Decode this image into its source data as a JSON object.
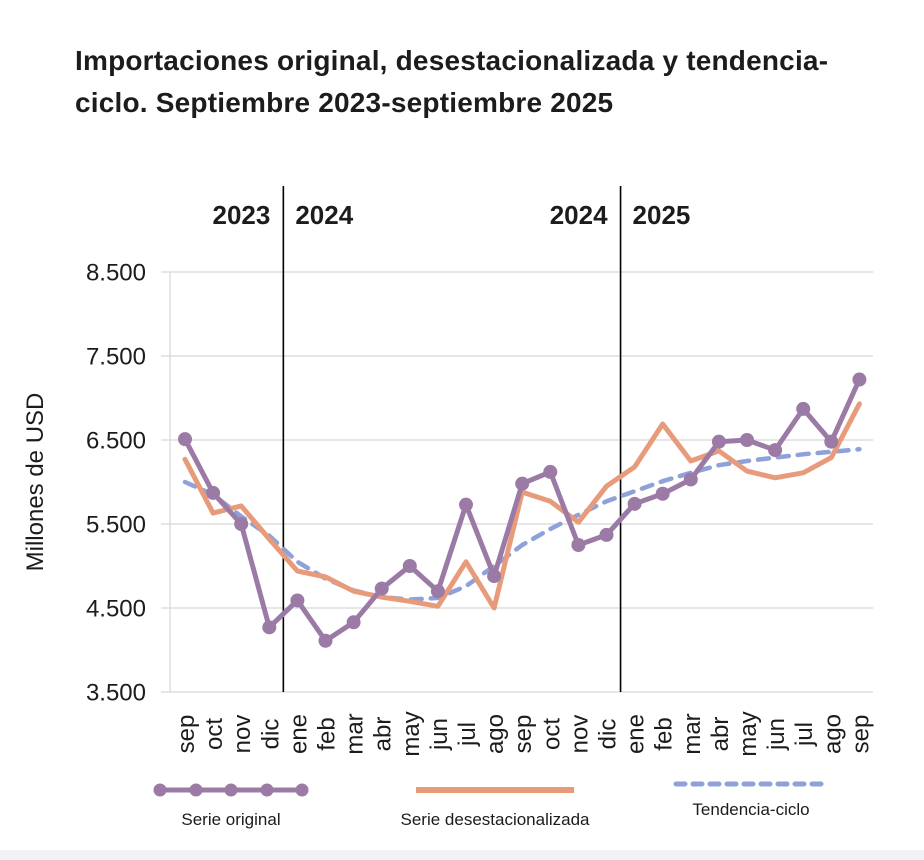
{
  "page": {
    "title_lines": [
      "Importaciones original, desestacionalizada y tendencia-",
      "ciclo. Septiembre 2023-septiembre 2025"
    ],
    "footer_bar_color": "#f2f2f6"
  },
  "chart_data": {
    "type": "line",
    "title": "Importaciones original, desestacionalizada y tendencia-ciclo. Septiembre 2023-septiembre 2025",
    "xlabel": "",
    "ylabel": "Millones de USD",
    "ylim": [
      3500,
      8500
    ],
    "grid": "horizontal",
    "legend_position": "bottom",
    "yticks": {
      "values": [
        3500,
        4500,
        5500,
        6500,
        7500,
        8500
      ],
      "labels": [
        "3.500",
        "4.500",
        "5.500",
        "6.500",
        "7.500",
        "8.500"
      ]
    },
    "x_labels": [
      "sep",
      "oct",
      "nov",
      "dic",
      "ene",
      "feb",
      "mar",
      "abr",
      "may",
      "jun",
      "jul",
      "ago",
      "sep",
      "oct",
      "nov",
      "dic",
      "ene",
      "feb",
      "mar",
      "abr",
      "may",
      "jun",
      "jul",
      "ago",
      "sep"
    ],
    "year_dividers": [
      {
        "between_indices": [
          3,
          4
        ],
        "left_label": "2023",
        "right_label": "2024"
      },
      {
        "between_indices": [
          15,
          16
        ],
        "left_label": "2024",
        "right_label": "2025"
      }
    ],
    "series": [
      {
        "name": "Serie original",
        "color": "#9b7aa6",
        "line_style": "solid",
        "markers": true,
        "values": [
          6510,
          5870,
          5500,
          4270,
          4590,
          4110,
          4330,
          4730,
          5000,
          4700,
          5730,
          4880,
          5980,
          6120,
          5250,
          5370,
          5740,
          5860,
          6030,
          6480,
          6500,
          6380,
          6870,
          6480,
          7220
        ]
      },
      {
        "name": "Serie desestacionalizada",
        "color": "#e89b7b",
        "line_style": "solid",
        "markers": false,
        "values": [
          6270,
          5630,
          5715,
          5320,
          4940,
          4870,
          4700,
          4630,
          4580,
          4520,
          5050,
          4500,
          5880,
          5770,
          5520,
          5950,
          6180,
          6690,
          6250,
          6370,
          6130,
          6050,
          6110,
          6290,
          6930
        ]
      },
      {
        "name": "Tendencia-ciclo",
        "color": "#8ea1d8",
        "line_style": "dashed",
        "markers": false,
        "values": [
          6000,
          5850,
          5590,
          5360,
          5050,
          4850,
          4710,
          4630,
          4600,
          4620,
          4760,
          5000,
          5250,
          5440,
          5610,
          5770,
          5890,
          6010,
          6110,
          6200,
          6250,
          6290,
          6330,
          6360,
          6390
        ]
      }
    ],
    "colors": {
      "gridline": "#d8d8d8",
      "divider": "#000000",
      "text": "#1c1c1c"
    }
  }
}
